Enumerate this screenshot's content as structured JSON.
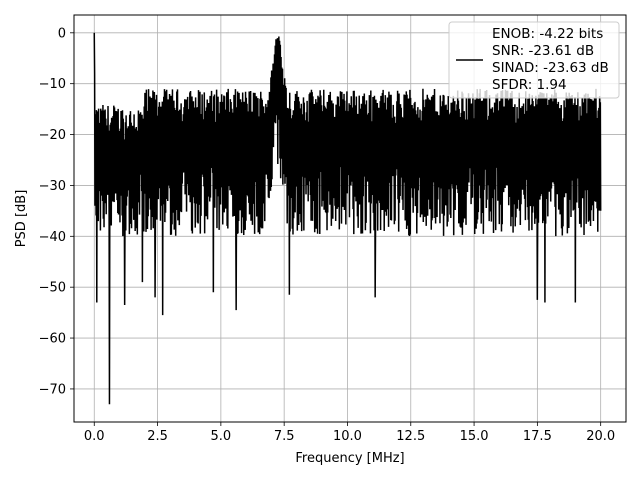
{
  "chart_data": {
    "type": "line",
    "xlabel": "Frequency [MHz]",
    "ylabel": "PSD [dB]",
    "xlim": [
      -0.8,
      21.0
    ],
    "ylim": [
      -76.5,
      3.5
    ],
    "xticks": [
      0.0,
      2.5,
      5.0,
      7.5,
      10.0,
      12.5,
      15.0,
      17.5,
      20.0
    ],
    "xtick_labels": [
      "0.0",
      "2.5",
      "5.0",
      "7.5",
      "10.0",
      "12.5",
      "15.0",
      "17.5",
      "20.0"
    ],
    "yticks": [
      0,
      -10,
      -20,
      -30,
      -40,
      -50,
      -60,
      -70
    ],
    "ytick_labels": [
      "0",
      "−10",
      "−20",
      "−30",
      "−40",
      "−50",
      "−60",
      "−70"
    ],
    "grid": true,
    "legend_position": "top-right",
    "series_color": "#000000",
    "legend": {
      "lines": [
        "ENOB: -4.22 bits",
        "SNR: -23.61 dB",
        "SINAD: -23.63 dB",
        "SFDR: 1.94"
      ]
    },
    "series": [
      {
        "x_range": [
          0.0,
          20.0
        ],
        "noise_floor_top": -12,
        "noise_floor_typical_bottom": -38,
        "peaks": [
          {
            "x": 0.0,
            "y": 0.0
          },
          {
            "x": 7.25,
            "y": -2.0
          }
        ],
        "notable_minima": [
          {
            "x": 0.6,
            "y": -73.0
          },
          {
            "x": 0.1,
            "y": -53.0
          },
          {
            "x": 1.2,
            "y": -53.5
          },
          {
            "x": 1.9,
            "y": -49.0
          },
          {
            "x": 2.4,
            "y": -52.0
          },
          {
            "x": 2.7,
            "y": -55.5
          },
          {
            "x": 5.6,
            "y": -54.5
          },
          {
            "x": 4.7,
            "y": -51.0
          },
          {
            "x": 7.7,
            "y": -51.5
          },
          {
            "x": 11.1,
            "y": -52.0
          },
          {
            "x": 17.5,
            "y": -52.5
          },
          {
            "x": 17.8,
            "y": -53.0
          },
          {
            "x": 19.0,
            "y": -53.0
          }
        ]
      }
    ]
  }
}
